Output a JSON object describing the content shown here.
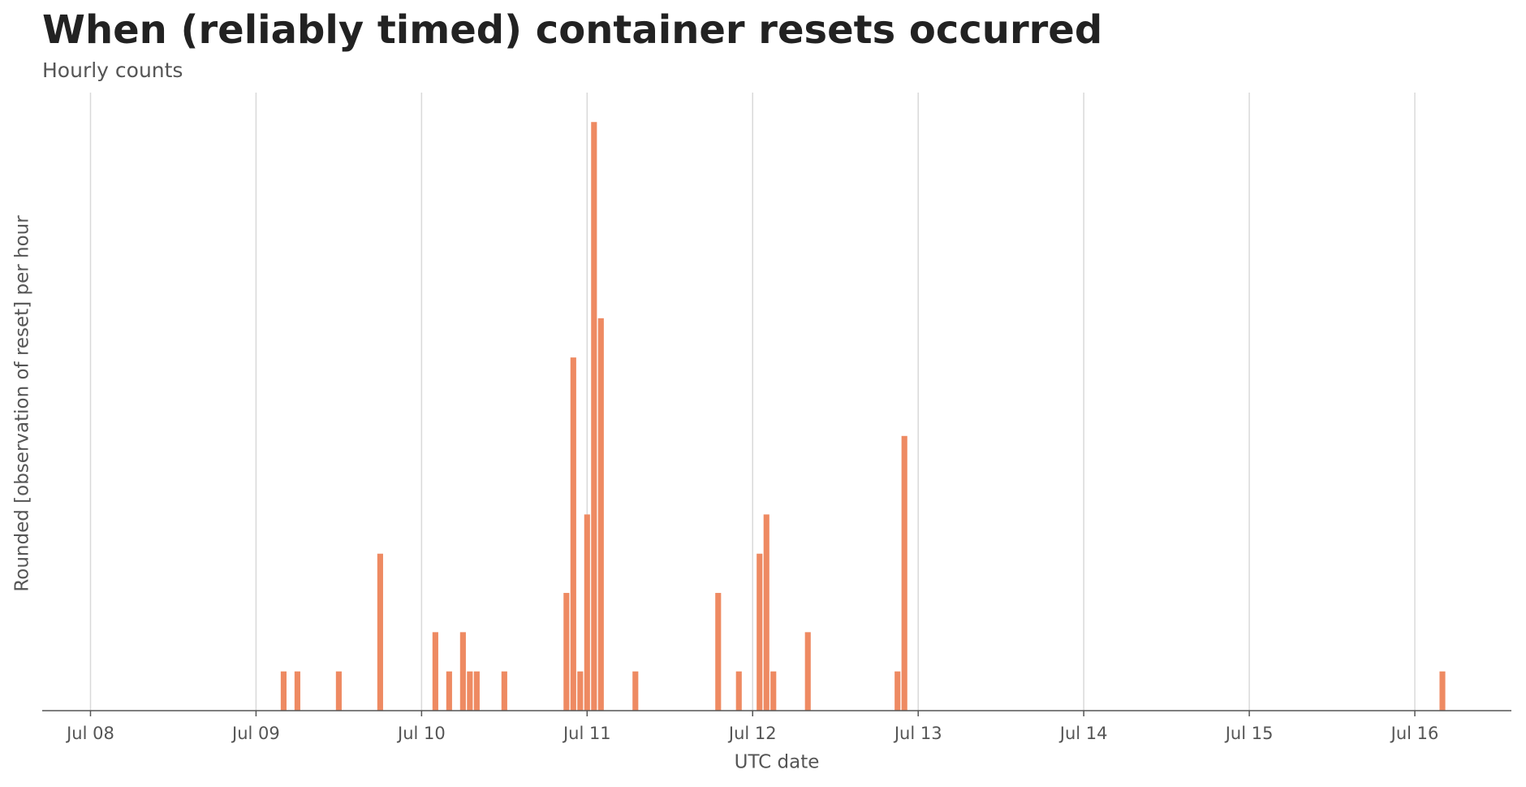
{
  "chart_data": {
    "type": "bar",
    "title": "When (reliably timed) container resets occurred",
    "subtitle": "Hourly counts",
    "x_label": "UTC date",
    "y_label": "Rounded [observation of reset] per hour",
    "x": [
      "Jul 09 04:00",
      "Jul 09 06:00",
      "Jul 09 12:00",
      "Jul 09 18:00",
      "Jul 10 02:00",
      "Jul 10 04:00",
      "Jul 10 06:00",
      "Jul 10 07:00",
      "Jul 10 08:00",
      "Jul 10 12:00",
      "Jul 10 21:00",
      "Jul 10 22:00",
      "Jul 10 23:00",
      "Jul 11 00:00",
      "Jul 11 01:00",
      "Jul 11 02:00",
      "Jul 11 07:00",
      "Jul 11 19:00",
      "Jul 11 22:00",
      "Jul 12 01:00",
      "Jul 12 02:00",
      "Jul 12 03:00",
      "Jul 12 08:00",
      "Jul 12 21:00",
      "Jul 12 22:00",
      "Jul 16 04:00"
    ],
    "values": [
      1,
      1,
      1,
      4,
      2,
      1,
      2,
      1,
      1,
      1,
      3,
      9,
      1,
      5,
      15,
      10,
      1,
      3,
      1,
      4,
      5,
      1,
      2,
      1,
      7,
      1
    ],
    "color": "#ee8a62",
    "xlim": [
      "Jul 07 17:00",
      "Jul 16 14:00"
    ],
    "xticks": [
      "Jul 08",
      "Jul 09",
      "Jul 10",
      "Jul 11",
      "Jul 12",
      "Jul 13",
      "Jul 14",
      "Jul 15",
      "Jul 16"
    ],
    "ylim": [
      0,
      15.75
    ],
    "grid": true
  }
}
